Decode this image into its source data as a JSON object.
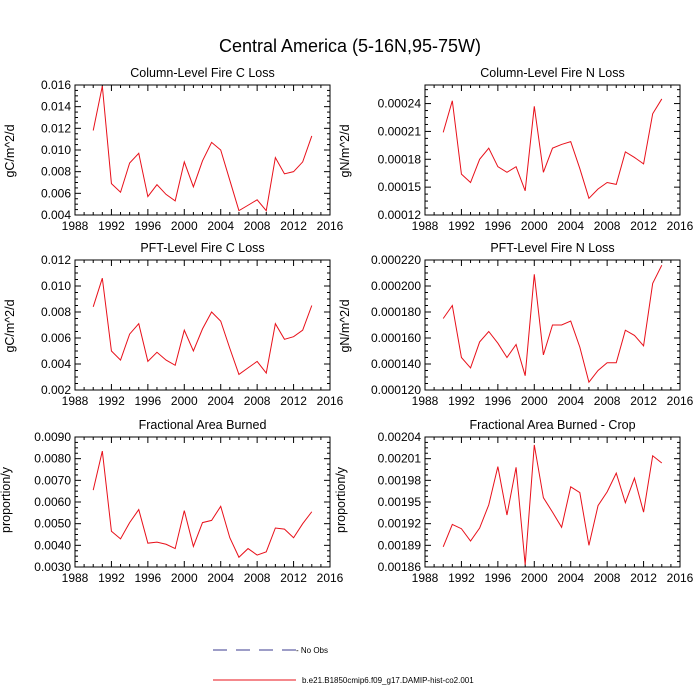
{
  "figure": {
    "title": "Central America (5-16N,95-75W)",
    "series_color": "#e8101a",
    "noobs_color": "#3b3b8f",
    "legend": [
      {
        "label": "- No Obs",
        "style": "dashed"
      },
      {
        "label": "b.e21.B1850cmip6.f09_g17.DAMIP-hist-co2.001",
        "style": "solid"
      }
    ]
  },
  "chart_data": [
    {
      "type": "line",
      "title": "Column-Level Fire C Loss",
      "ylabel": "gC/m^2/d",
      "xlim": [
        1988,
        2016
      ],
      "ylim": [
        0.004,
        0.016
      ],
      "xticks": [
        1988,
        1992,
        1996,
        2000,
        2004,
        2008,
        2012,
        2016
      ],
      "yticks": [
        0.004,
        0.006,
        0.008,
        0.01,
        0.012,
        0.014,
        0.016
      ],
      "ytick_labels": [
        "0.004",
        "0.006",
        "0.008",
        "0.010",
        "0.012",
        "0.014",
        "0.016"
      ],
      "series": [
        {
          "x": [
            1990,
            1991,
            1992,
            1993,
            1994,
            1995,
            1996,
            1997,
            1998,
            1999,
            2000,
            2001,
            2002,
            2003,
            2004,
            2005,
            2006,
            2007,
            2008,
            2009,
            2010,
            2011,
            2012,
            2013,
            2014
          ],
          "values": [
            0.0118,
            0.0159,
            0.0069,
            0.0061,
            0.0088,
            0.0097,
            0.0057,
            0.0068,
            0.0059,
            0.0053,
            0.0089,
            0.0066,
            0.009,
            0.0107,
            0.01,
            0.0072,
            0.0044,
            0.0049,
            0.0054,
            0.0044,
            0.0093,
            0.0078,
            0.008,
            0.0089,
            0.0113
          ]
        }
      ]
    },
    {
      "type": "line",
      "title": "Column-Level Fire N Loss",
      "ylabel": "gN/m^2/d",
      "xlim": [
        1988,
        2016
      ],
      "ylim": [
        0.00012,
        0.00026
      ],
      "xticks": [
        1988,
        1992,
        1996,
        2000,
        2004,
        2008,
        2012,
        2016
      ],
      "yticks": [
        0.00012,
        0.00015,
        0.00018,
        0.00021,
        0.00024
      ],
      "ytick_labels": [
        "0.00012",
        "0.00015",
        "0.00018",
        "0.00021",
        "0.00024"
      ],
      "series": [
        {
          "x": [
            1990,
            1991,
            1992,
            1993,
            1994,
            1995,
            1996,
            1997,
            1998,
            1999,
            2000,
            2001,
            2002,
            2003,
            2004,
            2005,
            2006,
            2007,
            2008,
            2009,
            2010,
            2011,
            2012,
            2013,
            2014
          ],
          "values": [
            0.000209,
            0.000243,
            0.000164,
            0.000155,
            0.00018,
            0.000192,
            0.000172,
            0.000166,
            0.000172,
            0.000146,
            0.000237,
            0.000166,
            0.000192,
            0.000196,
            0.000199,
            0.00017,
            0.000138,
            0.000148,
            0.000155,
            0.000153,
            0.000188,
            0.000182,
            0.000175,
            0.000229,
            0.000245
          ]
        }
      ]
    },
    {
      "type": "line",
      "title": "PFT-Level Fire C Loss",
      "ylabel": "gC/m^2/d",
      "xlim": [
        1988,
        2016
      ],
      "ylim": [
        0.002,
        0.012
      ],
      "xticks": [
        1988,
        1992,
        1996,
        2000,
        2004,
        2008,
        2012,
        2016
      ],
      "yticks": [
        0.002,
        0.004,
        0.006,
        0.008,
        0.01,
        0.012
      ],
      "ytick_labels": [
        "0.002",
        "0.004",
        "0.006",
        "0.008",
        "0.010",
        "0.012"
      ],
      "series": [
        {
          "x": [
            1990,
            1991,
            1992,
            1993,
            1994,
            1995,
            1996,
            1997,
            1998,
            1999,
            2000,
            2001,
            2002,
            2003,
            2004,
            2005,
            2006,
            2007,
            2008,
            2009,
            2010,
            2011,
            2012,
            2013,
            2014
          ],
          "values": [
            0.0084,
            0.0106,
            0.005,
            0.0043,
            0.0063,
            0.0071,
            0.0042,
            0.0049,
            0.0043,
            0.0039,
            0.0066,
            0.005,
            0.0067,
            0.008,
            0.0073,
            0.0052,
            0.0032,
            0.0037,
            0.0042,
            0.0033,
            0.0071,
            0.0059,
            0.0061,
            0.0066,
            0.0085
          ]
        }
      ]
    },
    {
      "type": "line",
      "title": "PFT-Level Fire N Loss",
      "ylabel": "gN/m^2/d",
      "xlim": [
        1988,
        2016
      ],
      "ylim": [
        0.00012,
        0.00022
      ],
      "xticks": [
        1988,
        1992,
        1996,
        2000,
        2004,
        2008,
        2012,
        2016
      ],
      "yticks": [
        0.00012,
        0.00014,
        0.00016,
        0.00018,
        0.0002,
        0.00022
      ],
      "ytick_labels": [
        "0.000120",
        "0.000140",
        "0.000160",
        "0.000180",
        "0.000200",
        "0.000220"
      ],
      "series": [
        {
          "x": [
            1990,
            1991,
            1992,
            1993,
            1994,
            1995,
            1996,
            1997,
            1998,
            1999,
            2000,
            2001,
            2002,
            2003,
            2004,
            2005,
            2006,
            2007,
            2008,
            2009,
            2010,
            2011,
            2012,
            2013,
            2014
          ],
          "values": [
            0.000175,
            0.000185,
            0.000145,
            0.000137,
            0.000157,
            0.000165,
            0.000156,
            0.000145,
            0.000155,
            0.000131,
            0.000209,
            0.000147,
            0.00017,
            0.00017,
            0.000173,
            0.000153,
            0.000126,
            0.000135,
            0.000141,
            0.000141,
            0.000166,
            0.000162,
            0.000154,
            0.000202,
            0.000216
          ]
        }
      ]
    },
    {
      "type": "line",
      "title": "Fractional Area Burned",
      "ylabel": "proportion/y",
      "xlim": [
        1988,
        2016
      ],
      "ylim": [
        0.003,
        0.009
      ],
      "xticks": [
        1988,
        1992,
        1996,
        2000,
        2004,
        2008,
        2012,
        2016
      ],
      "yticks": [
        0.003,
        0.004,
        0.005,
        0.006,
        0.007,
        0.008,
        0.009
      ],
      "ytick_labels": [
        "0.0030",
        "0.0040",
        "0.0050",
        "0.0060",
        "0.0070",
        "0.0080",
        "0.0090"
      ],
      "series": [
        {
          "x": [
            1990,
            1991,
            1992,
            1993,
            1994,
            1995,
            1996,
            1997,
            1998,
            1999,
            2000,
            2001,
            2002,
            2003,
            2004,
            2005,
            2006,
            2007,
            2008,
            2009,
            2010,
            2011,
            2012,
            2013,
            2014
          ],
          "values": [
            0.00655,
            0.00835,
            0.00465,
            0.0043,
            0.00505,
            0.00565,
            0.0041,
            0.00415,
            0.00405,
            0.00385,
            0.0056,
            0.00395,
            0.00505,
            0.00515,
            0.0058,
            0.00435,
            0.00345,
            0.00385,
            0.00355,
            0.0037,
            0.0048,
            0.00475,
            0.00435,
            0.005,
            0.00555
          ]
        }
      ]
    },
    {
      "type": "line",
      "title": "Fractional Area Burned - Crop",
      "ylabel": "proportion/y",
      "xlim": [
        1988,
        2016
      ],
      "ylim": [
        0.00186,
        0.00204
      ],
      "xticks": [
        1988,
        1992,
        1996,
        2000,
        2004,
        2008,
        2012,
        2016
      ],
      "yticks": [
        0.00186,
        0.00189,
        0.00192,
        0.00195,
        0.00198,
        0.00201,
        0.00204
      ],
      "ytick_labels": [
        "0.00186",
        "0.00189",
        "0.00192",
        "0.00195",
        "0.00198",
        "0.00201",
        "0.00204"
      ],
      "series": [
        {
          "x": [
            1990,
            1991,
            1992,
            1993,
            1994,
            1995,
            1996,
            1997,
            1998,
            1999,
            2000,
            2001,
            2002,
            2003,
            2004,
            2005,
            2006,
            2007,
            2008,
            2009,
            2010,
            2011,
            2012,
            2013,
            2014
          ],
          "values": [
            0.001888,
            0.001919,
            0.001913,
            0.001896,
            0.001914,
            0.001946,
            0.001999,
            0.001932,
            0.001998,
            0.001863,
            0.002029,
            0.001956,
            0.001936,
            0.001915,
            0.001971,
            0.001963,
            0.00189,
            0.001945,
            0.001964,
            0.00199,
            0.001949,
            0.001983,
            0.001936,
            0.002014,
            0.002004
          ]
        }
      ]
    }
  ]
}
